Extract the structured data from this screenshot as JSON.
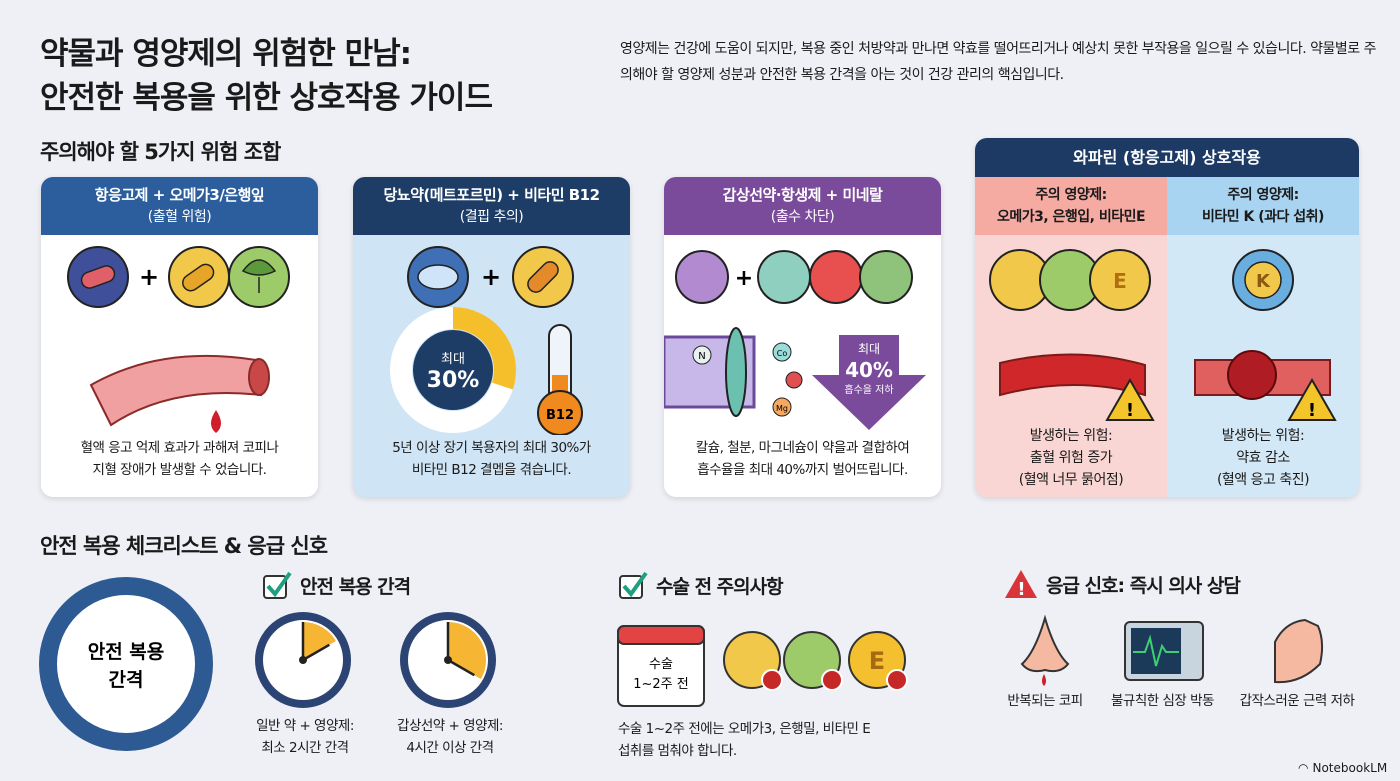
{
  "header": {
    "title_line1": "약물과 영양제의 위험한 만남:",
    "title_line2": "안전한 복용을 위한 상호작용 가이드",
    "intro": "영양제는 건강에 도움이 되지만, 복용 중인 처방약과 만나면 약효를 떨어뜨리거나 예상치 못한 부작용을 일으릴 수 있습니다. 약물별로 주의해야 할 영양제 성분과 안전한 복용 간격을 아는 것이 건강 관리의 핵심입니다."
  },
  "section1": {
    "title": "주의해야 할 5가지 위험 조합",
    "cards": [
      {
        "title": "항응고제 + 오메가3/은행잎",
        "subtitle": "(출혈 위험)",
        "desc1": "혈액 응고 억제 효과가 과해져 코피나",
        "desc2": "지혈 장애가 발생할 수 었습니다.",
        "color": "#2c5e9e"
      },
      {
        "title": "당뇨약(메트포르민) + 비타민 B12",
        "subtitle": "(결핍 추의)",
        "desc1": "5년 이상 장기 복용자의 최대 30%가",
        "desc2": "비타민 B12 결멥을 겪습니다.",
        "donut_label": "최대",
        "donut_value": "30%",
        "donut_percent": 30,
        "thermo_label": "B12",
        "color": "#1d3c66"
      },
      {
        "title": "갑상선약·항생제 + 미네랄",
        "subtitle": "(출수 차단)",
        "desc1": "칼슘, 철분, 마그네슘이 약을과 결합하여",
        "desc2": "흡수율을 최대 40%까지 벌어뜨립니다.",
        "arrow_label": "최대",
        "arrow_value": "40%",
        "arrow_sub": "흡수을 저하",
        "minerals": [
          "N",
          "Co",
          "Mg"
        ],
        "color": "#7b4b9b"
      }
    ],
    "warfarin": {
      "title": "와파린 (항응고제) 상호작용",
      "left": {
        "head1": "주의 영양제:",
        "head2": "오메가3, 은행입, 비타민E",
        "pill_label": "E",
        "risk1": "발생하는 위험:",
        "risk2": "출혈 위험 증가",
        "risk3": "(혈액 너무 묽어점)"
      },
      "right": {
        "head1": "주의 영양제:",
        "head2": "비타민 K (과다 섭취)",
        "pill_label": "K",
        "risk1": "발생하는 위험:",
        "risk2": "약효 감소",
        "risk3": "(혈액 응고 축진)"
      }
    }
  },
  "section2": {
    "title": "안전 복용 체크리스트 & 응급 신호",
    "ring_label1": "안전 복용",
    "ring_label2": "간격",
    "interval": {
      "title": "안전 복용 간격",
      "clocks": [
        {
          "cap1": "일반 약 + 영양제:",
          "cap2": "최소 2시간 간격",
          "hours": 2
        },
        {
          "cap1": "갑상선약 + 영양제:",
          "cap2": "4시간 이상 간격",
          "hours": 4
        }
      ]
    },
    "surgery": {
      "title": "수술 전 주의사항",
      "calendar1": "수술",
      "calendar2": "1~2주 전",
      "pill_label": "E",
      "desc1": "수술 1~2주 전에는 오메가3, 은행밀, 비타민 E",
      "desc2": "섭취를 멈춰야 합니다."
    },
    "emergency": {
      "title": "응급 신호: 즉시 의사 상담",
      "items": [
        "반복되는 코피",
        "불규칙한 심장 박동",
        "갑작스러운 근력 저하"
      ]
    }
  },
  "footer": {
    "brand": "NotebookLM"
  }
}
